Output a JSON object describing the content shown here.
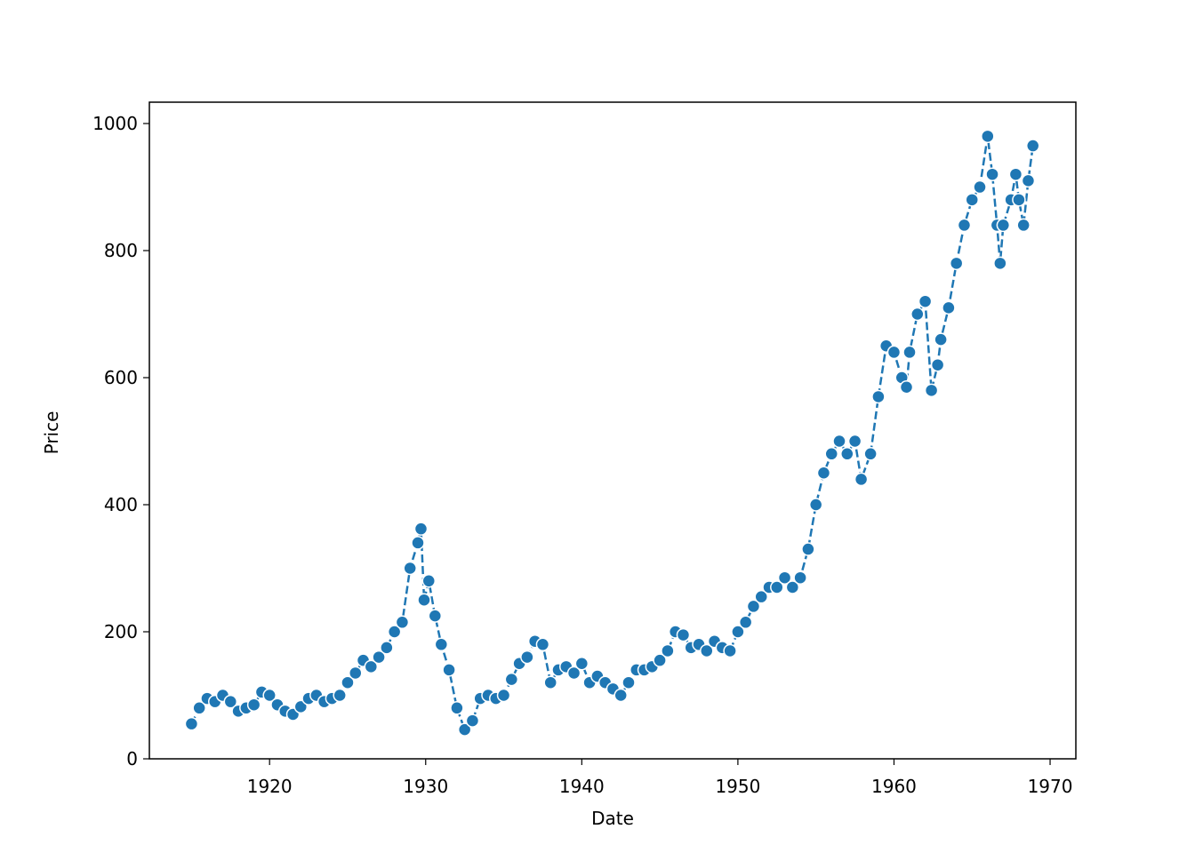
{
  "chart_data": {
    "type": "line",
    "xlabel": "Date",
    "ylabel": "Price",
    "color": "#1f77b4",
    "markers": true,
    "x": [
      1915.0,
      1915.5,
      1916.0,
      1916.5,
      1917.0,
      1917.5,
      1918.0,
      1918.5,
      1919.0,
      1919.5,
      1920.0,
      1920.5,
      1921.0,
      1921.5,
      1922.0,
      1922.5,
      1923.0,
      1923.5,
      1924.0,
      1924.5,
      1925.0,
      1925.5,
      1926.0,
      1926.5,
      1927.0,
      1927.5,
      1928.0,
      1928.5,
      1929.0,
      1929.5,
      1929.7,
      1929.9,
      1930.2,
      1930.6,
      1931.0,
      1931.5,
      1932.0,
      1932.5,
      1933.0,
      1933.5,
      1934.0,
      1934.5,
      1935.0,
      1935.5,
      1936.0,
      1936.5,
      1937.0,
      1937.5,
      1938.0,
      1938.5,
      1939.0,
      1939.5,
      1940.0,
      1940.5,
      1941.0,
      1941.5,
      1942.0,
      1942.5,
      1943.0,
      1943.5,
      1944.0,
      1944.5,
      1945.0,
      1945.5,
      1946.0,
      1946.5,
      1947.0,
      1947.5,
      1948.0,
      1948.5,
      1949.0,
      1949.5,
      1950.0,
      1950.5,
      1951.0,
      1951.5,
      1952.0,
      1952.5,
      1953.0,
      1953.5,
      1954.0,
      1954.5,
      1955.0,
      1955.5,
      1956.0,
      1956.5,
      1957.0,
      1957.5,
      1957.9,
      1958.5,
      1959.0,
      1959.5,
      1960.0,
      1960.5,
      1960.8,
      1961.0,
      1961.5,
      1962.0,
      1962.4,
      1962.8,
      1963.0,
      1963.5,
      1964.0,
      1964.5,
      1965.0,
      1965.5,
      1966.0,
      1966.3,
      1966.6,
      1966.8,
      1967.0,
      1967.5,
      1967.8,
      1968.0,
      1968.3,
      1968.6,
      1968.9
    ],
    "values": [
      55,
      80,
      95,
      90,
      100,
      90,
      75,
      80,
      85,
      105,
      100,
      85,
      75,
      70,
      82,
      95,
      100,
      90,
      95,
      100,
      120,
      135,
      155,
      145,
      160,
      175,
      200,
      215,
      300,
      340,
      362,
      250,
      280,
      225,
      180,
      140,
      80,
      46,
      60,
      95,
      100,
      95,
      100,
      125,
      150,
      160,
      185,
      180,
      120,
      140,
      145,
      135,
      150,
      120,
      130,
      120,
      110,
      100,
      120,
      140,
      140,
      145,
      155,
      170,
      200,
      195,
      175,
      180,
      170,
      185,
      175,
      170,
      200,
      215,
      240,
      255,
      270,
      270,
      285,
      270,
      285,
      330,
      400,
      450,
      480,
      500,
      480,
      500,
      440,
      480,
      570,
      650,
      640,
      600,
      585,
      640,
      700,
      720,
      580,
      620,
      660,
      710,
      780,
      840,
      880,
      900,
      980,
      920,
      840,
      780,
      840,
      880,
      920,
      880,
      840,
      910,
      965
    ],
    "xlim": [
      1912.3,
      1971.65
    ],
    "ylim": [
      0,
      1033.6
    ],
    "xticks": [
      1920,
      1930,
      1940,
      1950,
      1960,
      1970
    ],
    "yticks": [
      0,
      200,
      400,
      600,
      800,
      1000
    ]
  }
}
